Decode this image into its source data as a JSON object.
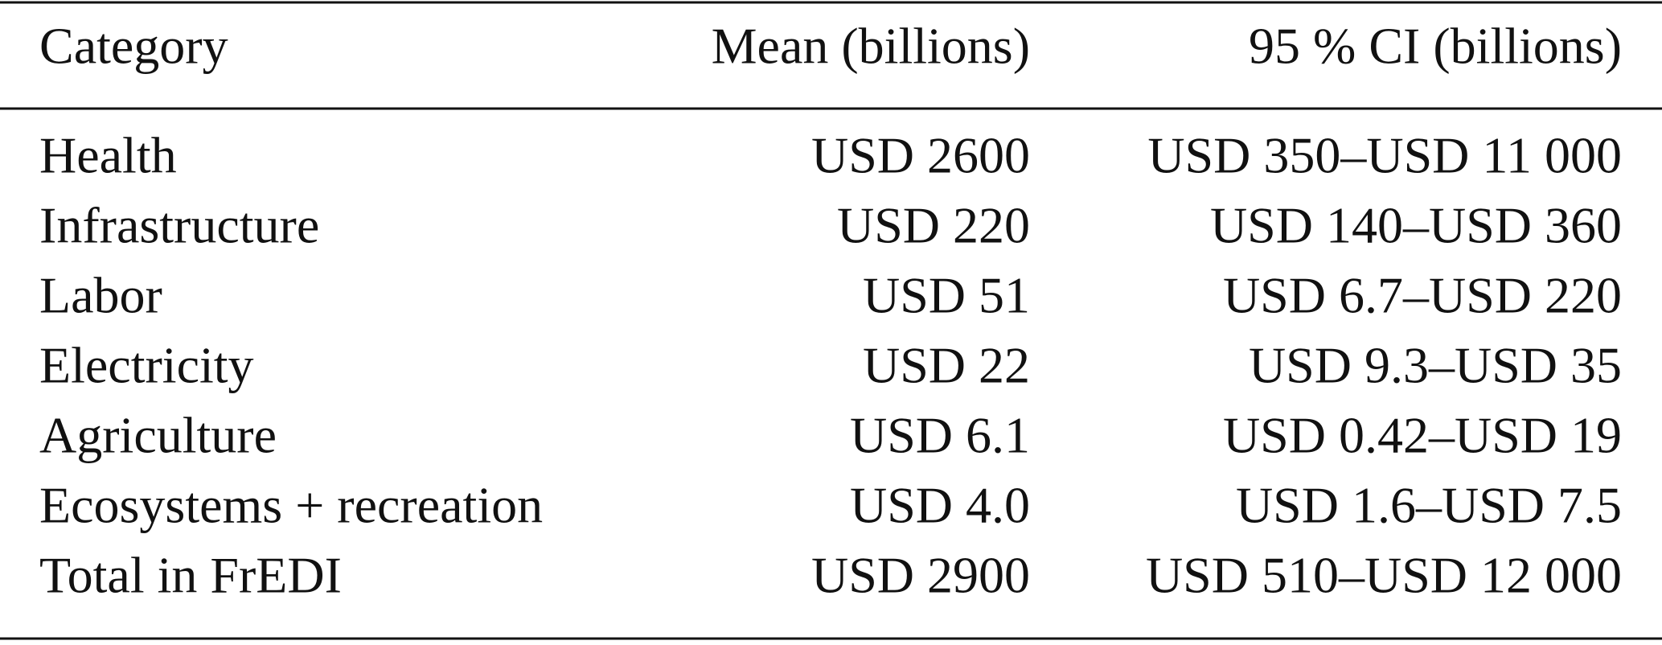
{
  "table": {
    "header": [
      "Category",
      "Mean (billions)",
      "95 % CI (billions)"
    ],
    "rows": [
      [
        "Health",
        "USD 2600",
        "USD 350–USD 11 000"
      ],
      [
        "Infrastructure",
        "USD 220",
        "USD 140–USD 360"
      ],
      [
        "Labor",
        "USD 51",
        "USD 6.7–USD 220"
      ],
      [
        "Electricity",
        "USD 22",
        "USD 9.3–USD 35"
      ],
      [
        "Agriculture",
        "USD 6.1",
        "USD 0.42–USD 19"
      ],
      [
        "Ecosystems + recreation",
        "USD 4.0",
        "USD 1.6–USD 7.5"
      ],
      [
        "Total in FrEDI",
        "USD 2900",
        "USD 510–USD 12 000"
      ]
    ]
  }
}
